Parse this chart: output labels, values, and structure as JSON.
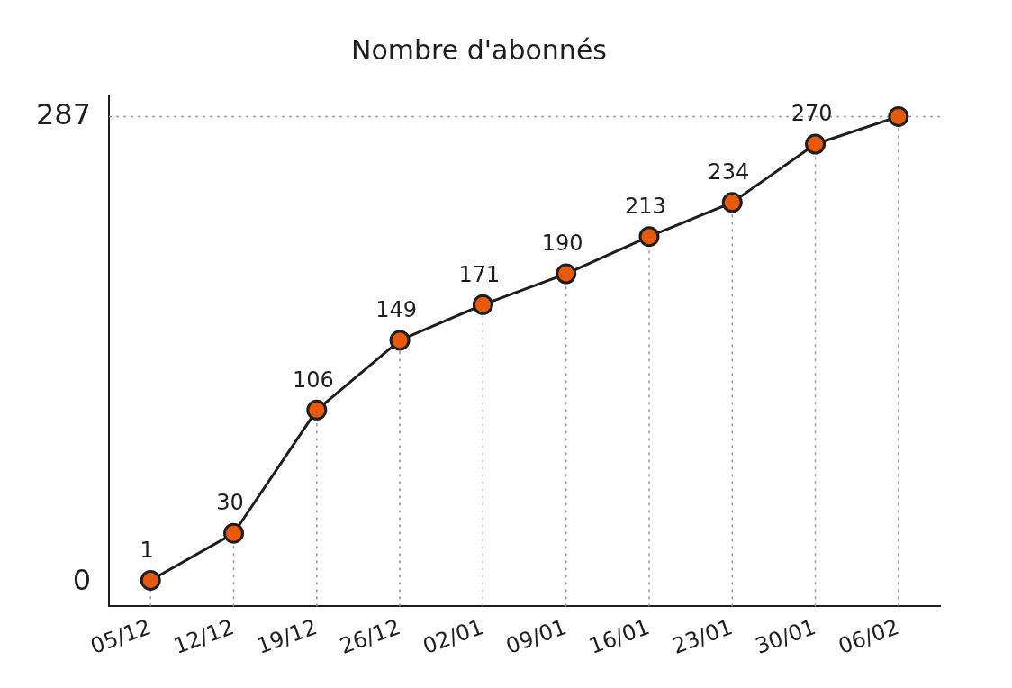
{
  "chart_data": {
    "type": "line",
    "title": "Nombre d'abonnés",
    "categories": [
      "05/12",
      "12/12",
      "19/12",
      "26/12",
      "02/01",
      "09/01",
      "16/01",
      "23/01",
      "30/01",
      "06/02"
    ],
    "series": [
      {
        "color": "#e8590c",
        "values": [
          1,
          30,
          106,
          149,
          171,
          190,
          213,
          234,
          270,
          287
        ],
        "value_labels": [
          "1",
          "30",
          "106",
          "149",
          "171",
          "190",
          "213",
          "234",
          "270",
          null
        ]
      }
    ],
    "ylim": [
      -15,
      300
    ],
    "yticks": [
      0,
      287
    ],
    "ref_lines": [
      {
        "axis": "y",
        "value": 287,
        "color": "#999999",
        "line_style": "dotted"
      }
    ],
    "grid": "x",
    "legend": false,
    "marker": "circle",
    "line_style": "solid"
  }
}
